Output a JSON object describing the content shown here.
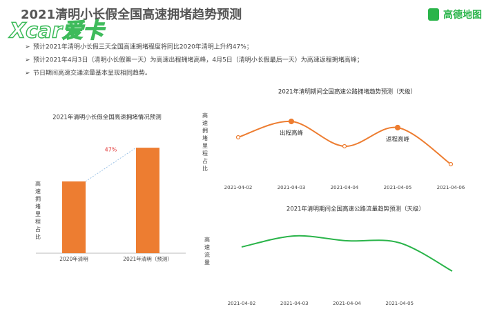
{
  "header": {
    "title": "2021清明小长假全国高速拥堵趋势预测",
    "logo": "高德地图",
    "watermark": "Xcar爱卡"
  },
  "bullets": [
    "预计2021年清明小长假三天全国高速拥堵程度将同比2020年清明上升约47%；",
    "预计2021年4月3日（清明小长假第一天）为高速出程拥堵高峰，4月5日（清明小长假最后一天）为高速返程拥堵高峰；",
    "节日期间高速交通流量基本呈现相同趋势。"
  ],
  "chart_data": [
    {
      "type": "bar",
      "title": "2021年清明小长假全国高速拥堵情况预测",
      "y_label": "高速拥堵里程占比",
      "categories": [
        "2020年清明",
        "2021年清明（预测）"
      ],
      "values": [
        100,
        147
      ],
      "color": "#ed7d31",
      "ylim": [
        0,
        150
      ],
      "annotation": "47%"
    },
    {
      "type": "line",
      "title": "2021年清明期间全国高速公路拥堵趋势预测（天级）",
      "y_label": "高速拥堵里程占比",
      "categories": [
        "2021-04-02",
        "2021-04-03",
        "2021-04-04",
        "2021-04-05",
        "2021-04-06"
      ],
      "series": [
        {
          "color": "#ed7d31",
          "values": [
            61,
            84,
            48,
            75,
            22
          ]
        }
      ],
      "ylim": [
        0,
        100
      ],
      "markers": true,
      "annotations": [
        {
          "text": "出程高峰",
          "index": 1
        },
        {
          "text": "返程高峰",
          "index": 3
        }
      ]
    },
    {
      "type": "line",
      "title": "2021年清明期间全国高速公路流量趋势预测（天级）",
      "y_label": "高速流量",
      "categories": [
        "2021-04-02",
        "2021-04-03",
        "2021-04-04",
        "2021-04-05",
        null
      ],
      "series": [
        {
          "color": "#2ab44a",
          "values": [
            52,
            68,
            61,
            58,
            17
          ]
        }
      ],
      "ylim": [
        0,
        100
      ],
      "markers": false
    }
  ]
}
